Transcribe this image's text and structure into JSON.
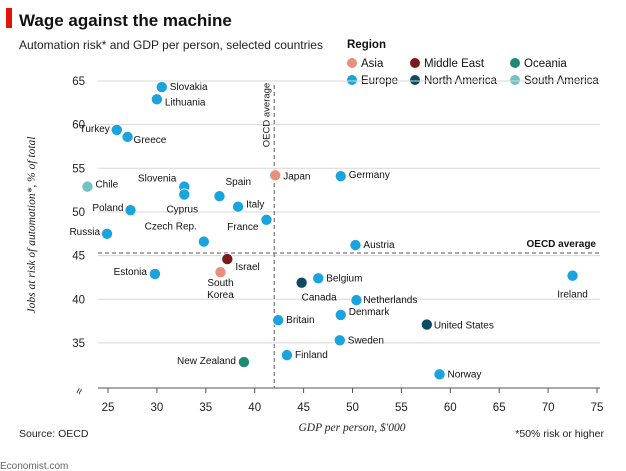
{
  "header": {
    "title": "Wage against the machine",
    "subtitle": "Automation risk* and GDP per person, selected countries"
  },
  "legend": {
    "title": "Region",
    "items": [
      {
        "name": "Asia",
        "color": "#E8907A"
      },
      {
        "name": "Middle East",
        "color": "#7A1A1A"
      },
      {
        "name": "Oceania",
        "color": "#1E8A72"
      },
      {
        "name": "Europe",
        "color": "#1AA3DD"
      },
      {
        "name": "North America",
        "color": "#0E4A62"
      },
      {
        "name": "South America",
        "color": "#72C2C2"
      }
    ]
  },
  "footer": {
    "source": "Source: OECD",
    "footnote": "*50% risk or higher",
    "brand": "Economist.com"
  },
  "chart_data": {
    "type": "scatter",
    "title": "Wage against the machine",
    "subtitle": "Automation risk* and GDP per person, selected countries",
    "xlabel": "GDP per person, $'000",
    "ylabel": "Jobs at risk of automation*, % of total",
    "xlim": [
      24,
      75
    ],
    "ylim": [
      30,
      67
    ],
    "x_ticks": [
      25,
      30,
      35,
      40,
      45,
      50,
      55,
      60,
      65,
      70,
      75
    ],
    "y_ticks": [
      35,
      40,
      45,
      50,
      55,
      60,
      65
    ],
    "grid": true,
    "axis_break_symbol": "≈",
    "reference_lines": {
      "vertical": {
        "value": 42,
        "label": "OECD average"
      },
      "horizontal": {
        "value": 45.3,
        "label": "OECD average"
      }
    },
    "points": [
      {
        "country": "Slovakia",
        "region": "Europe",
        "x": 30.5,
        "y": 64.3
      },
      {
        "country": "Lithuania",
        "region": "Europe",
        "x": 30.0,
        "y": 62.9
      },
      {
        "country": "Turkey",
        "region": "Europe",
        "x": 25.9,
        "y": 59.4
      },
      {
        "country": "Greece",
        "region": "Europe",
        "x": 27.0,
        "y": 58.6
      },
      {
        "country": "Chile",
        "region": "South America",
        "x": 22.9,
        "y": 52.9
      },
      {
        "country": "Poland",
        "region": "Europe",
        "x": 27.3,
        "y": 50.2
      },
      {
        "country": "Russia",
        "region": "Europe",
        "x": 24.9,
        "y": 47.5
      },
      {
        "country": "Slovenia",
        "region": "Europe",
        "x": 32.8,
        "y": 52.9
      },
      {
        "country": "Cyprus",
        "region": "Europe",
        "x": 32.8,
        "y": 52.0
      },
      {
        "country": "Spain",
        "region": "Europe",
        "x": 36.4,
        "y": 51.8
      },
      {
        "country": "Italy",
        "region": "Europe",
        "x": 38.3,
        "y": 50.6
      },
      {
        "country": "Czech Rep.",
        "region": "Europe",
        "x": 34.8,
        "y": 46.6
      },
      {
        "country": "France",
        "region": "Europe",
        "x": 41.2,
        "y": 49.1
      },
      {
        "country": "Japan",
        "region": "Asia",
        "x": 42.1,
        "y": 54.2
      },
      {
        "country": "Germany",
        "region": "Europe",
        "x": 48.8,
        "y": 54.1
      },
      {
        "country": "Austria",
        "region": "Europe",
        "x": 50.3,
        "y": 46.2
      },
      {
        "country": "Estonia",
        "region": "Europe",
        "x": 29.8,
        "y": 42.9
      },
      {
        "country": "Israel",
        "region": "Middle East",
        "x": 37.2,
        "y": 44.6
      },
      {
        "country": "South Korea",
        "region": "Asia",
        "x": 36.5,
        "y": 43.1
      },
      {
        "country": "Canada",
        "region": "North America",
        "x": 44.8,
        "y": 41.9
      },
      {
        "country": "Belgium",
        "region": "Europe",
        "x": 46.5,
        "y": 42.4
      },
      {
        "country": "Netherlands",
        "region": "Europe",
        "x": 50.4,
        "y": 39.9
      },
      {
        "country": "Denmark",
        "region": "Europe",
        "x": 48.8,
        "y": 38.2
      },
      {
        "country": "Britain",
        "region": "Europe",
        "x": 42.4,
        "y": 37.6
      },
      {
        "country": "United States",
        "region": "North America",
        "x": 57.6,
        "y": 37.1
      },
      {
        "country": "Ireland",
        "region": "Europe",
        "x": 72.5,
        "y": 42.7
      },
      {
        "country": "Sweden",
        "region": "Europe",
        "x": 48.7,
        "y": 35.3
      },
      {
        "country": "Finland",
        "region": "Europe",
        "x": 43.3,
        "y": 33.6
      },
      {
        "country": "New Zealand",
        "region": "Oceania",
        "x": 38.9,
        "y": 32.8
      },
      {
        "country": "Norway",
        "region": "Europe",
        "x": 58.9,
        "y": 31.4
      }
    ]
  }
}
